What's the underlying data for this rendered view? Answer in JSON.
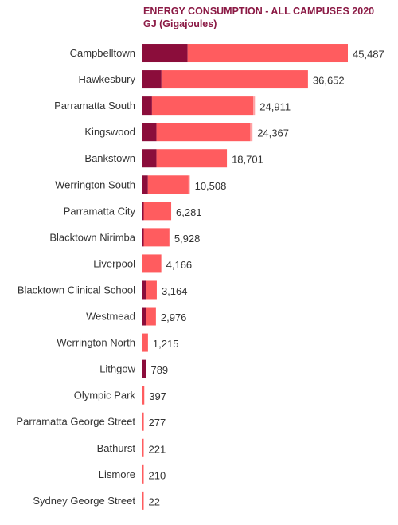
{
  "chart_data": {
    "type": "bar",
    "orientation": "horizontal",
    "stacked": true,
    "title": "ENERGY CONSUMPTION - ALL CAMPUSES 2020",
    "subtitle": "GJ (Gigajoules)",
    "categories": [
      "Campbelltown",
      "Hawkesbury",
      "Parramatta South",
      "Kingswood",
      "Bankstown",
      "Werrington South",
      "Parramatta City",
      "Blacktown Nirimba",
      "Liverpool",
      "Blacktown Clinical School",
      "Westmead",
      "Werrington North",
      "Lithgow",
      "Olympic Park",
      "Parramatta George Street",
      "Bathurst",
      "Lismore",
      "Sydney George Street"
    ],
    "totals": [
      45487,
      36652,
      24911,
      24367,
      18701,
      10508,
      6281,
      5928,
      4166,
      3164,
      2976,
      1215,
      789,
      397,
      277,
      221,
      210,
      22
    ],
    "series": [
      {
        "values": [
          10000,
          4200,
          2100,
          3100,
          3100,
          1200,
          190,
          230,
          0,
          760,
          790,
          0,
          789,
          0,
          0,
          0,
          0,
          0
        ],
        "color": "#8b0d3b"
      },
      {
        "values": [
          35487,
          32452,
          22411,
          20767,
          15601,
          9008,
          6091,
          5698,
          4166,
          2404,
          2186,
          1215,
          0,
          397,
          277,
          221,
          210,
          22
        ],
        "color": "#ff5c5f"
      },
      {
        "values": [
          0,
          0,
          400,
          500,
          0,
          300,
          0,
          0,
          0,
          0,
          0,
          0,
          0,
          0,
          0,
          0,
          0,
          0
        ],
        "color": "#ffa3a5"
      }
    ],
    "xlim": [
      0,
      45487
    ],
    "legend": "none",
    "grid": false
  }
}
